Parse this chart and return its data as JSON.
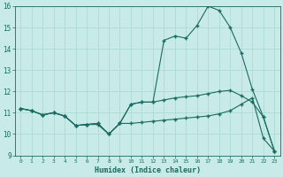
{
  "xlabel": "Humidex (Indice chaleur)",
  "background_color": "#c8eae8",
  "grid_color": "#a8d8d0",
  "line_color": "#1a6b60",
  "xlim": [
    -0.5,
    23.5
  ],
  "ylim": [
    9,
    16
  ],
  "yticks": [
    9,
    10,
    11,
    12,
    13,
    14,
    15,
    16
  ],
  "xticks": [
    0,
    1,
    2,
    3,
    4,
    5,
    6,
    7,
    8,
    9,
    10,
    11,
    12,
    13,
    14,
    15,
    16,
    17,
    18,
    19,
    20,
    21,
    22,
    23
  ],
  "line1_x": [
    0,
    1,
    2,
    3,
    4,
    5,
    6,
    7,
    8,
    9,
    10,
    11,
    12,
    13,
    14,
    15,
    16,
    17,
    18,
    19,
    20,
    21,
    22,
    23
  ],
  "line1_y": [
    11.2,
    11.1,
    10.9,
    11.0,
    10.85,
    10.4,
    10.45,
    10.45,
    10.0,
    10.5,
    11.4,
    11.5,
    11.5,
    14.4,
    14.6,
    14.5,
    15.1,
    16.0,
    15.8,
    15.0,
    13.8,
    12.1,
    10.8,
    9.2
  ],
  "line2_x": [
    0,
    1,
    2,
    3,
    4,
    5,
    6,
    7,
    8,
    9,
    10,
    11,
    12,
    13,
    14,
    15,
    16,
    17,
    18,
    19,
    20,
    21,
    22,
    23
  ],
  "line2_y": [
    11.2,
    11.1,
    10.9,
    11.0,
    10.85,
    10.4,
    10.45,
    10.5,
    10.0,
    10.5,
    11.4,
    11.5,
    11.5,
    11.6,
    11.7,
    11.75,
    11.8,
    11.9,
    12.0,
    12.05,
    11.8,
    11.5,
    10.8,
    9.2
  ],
  "line3_x": [
    0,
    1,
    2,
    3,
    4,
    5,
    6,
    7,
    8,
    9,
    10,
    11,
    12,
    13,
    14,
    15,
    16,
    17,
    18,
    19,
    20,
    21,
    22,
    23
  ],
  "line3_y": [
    11.2,
    11.1,
    10.9,
    11.0,
    10.85,
    10.4,
    10.45,
    10.5,
    10.0,
    10.5,
    10.5,
    10.55,
    10.6,
    10.65,
    10.7,
    10.75,
    10.8,
    10.85,
    10.95,
    11.1,
    11.4,
    11.7,
    9.8,
    9.2
  ]
}
